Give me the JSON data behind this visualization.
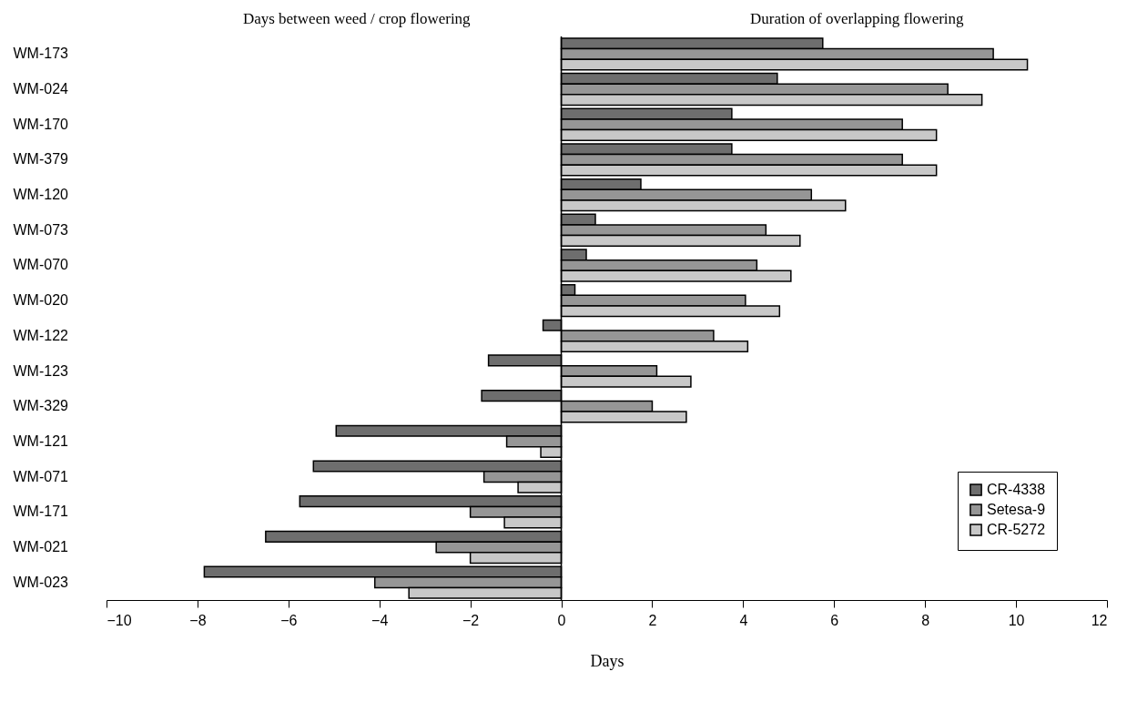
{
  "chart_data": {
    "type": "bar",
    "orientation": "horizontal",
    "xlabel": "Days",
    "annotations": [
      "Days between weed / crop flowering",
      "Duration of overlapping flowering"
    ],
    "categories": [
      "WM-173",
      "WM-024",
      "WM-170",
      "WM-379",
      "WM-120",
      "WM-073",
      "WM-070",
      "WM-020",
      "WM-122",
      "WM-123",
      "WM-329",
      "WM-121",
      "WM-071",
      "WM-171",
      "WM-021",
      "WM-023"
    ],
    "series": [
      {
        "name": "CR-4338",
        "color": "#6e6e6e",
        "values": [
          5.75,
          4.75,
          3.75,
          3.75,
          1.75,
          0.75,
          0.55,
          0.3,
          -0.4,
          -1.6,
          -1.75,
          -4.95,
          -5.45,
          -5.75,
          -6.5,
          -7.85
        ]
      },
      {
        "name": "Setesa-9",
        "color": "#969696",
        "values": [
          9.5,
          8.5,
          7.5,
          7.5,
          5.5,
          4.5,
          4.3,
          4.05,
          3.35,
          2.1,
          2.0,
          -1.2,
          -1.7,
          -2.0,
          -2.75,
          -4.1
        ]
      },
      {
        "name": "CR-5272",
        "color": "#c8c8c8",
        "values": [
          10.25,
          9.25,
          8.25,
          8.25,
          6.25,
          5.25,
          5.05,
          4.8,
          4.1,
          2.85,
          2.75,
          -0.45,
          -0.95,
          -1.25,
          -2.0,
          -3.35
        ]
      }
    ],
    "xlim": [
      -10,
      12
    ],
    "xticks": [
      -10,
      -8,
      -6,
      -4,
      -2,
      0,
      2,
      4,
      6,
      8,
      10,
      12
    ],
    "ref_lines": [
      {
        "axis": "x",
        "value": 0,
        "color": "#000000",
        "line_style": "solid"
      }
    ],
    "grid": false,
    "legend": "bottom right"
  }
}
